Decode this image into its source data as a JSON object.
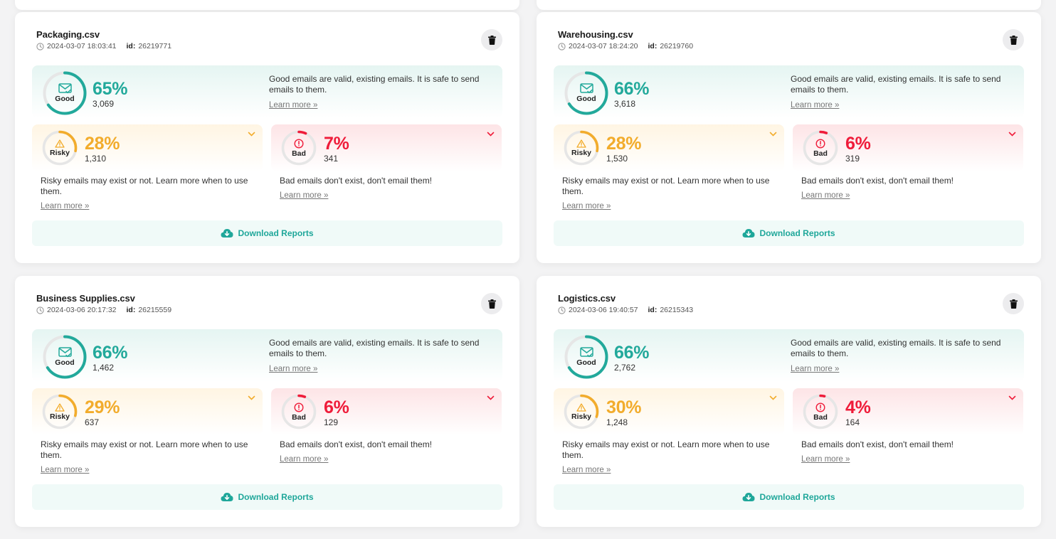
{
  "learn_more": "Learn more »",
  "download_label": "Download Reports",
  "id_label": "id:",
  "categories": {
    "good": {
      "label": "Good",
      "desc": "Good emails are valid, existing emails. It is safe to send emails to them.",
      "color": "#22a99b"
    },
    "risky": {
      "label": "Risky",
      "desc": "Risky emails may exist or not. Learn more when to use them.",
      "color": "#f2ac2c"
    },
    "bad": {
      "label": "Bad",
      "desc": "Bad emails don't exist, don't email them!",
      "color": "#ef1c3a"
    }
  },
  "cards": [
    {
      "file_name": "Packaging.csv",
      "date": "2024-03-07 18:03:41",
      "id": "26219771",
      "good": {
        "pct": "65%",
        "count": "3,069",
        "value": 0.65
      },
      "risky": {
        "pct": "28%",
        "count": "1,310",
        "value": 0.28
      },
      "bad": {
        "pct": "7%",
        "count": "341",
        "value": 0.07
      }
    },
    {
      "file_name": "Warehousing.csv",
      "date": "2024-03-07 18:24:20",
      "id": "26219760",
      "good": {
        "pct": "66%",
        "count": "3,618",
        "value": 0.66
      },
      "risky": {
        "pct": "28%",
        "count": "1,530",
        "value": 0.28
      },
      "bad": {
        "pct": "6%",
        "count": "319",
        "value": 0.06
      }
    },
    {
      "file_name": "Business Supplies.csv",
      "date": "2024-03-06 20:17:32",
      "id": "26215559",
      "good": {
        "pct": "66%",
        "count": "1,462",
        "value": 0.66
      },
      "risky": {
        "pct": "29%",
        "count": "637",
        "value": 0.29
      },
      "bad": {
        "pct": "6%",
        "count": "129",
        "value": 0.06
      }
    },
    {
      "file_name": "Logistics.csv",
      "date": "2024-03-06 19:40:57",
      "id": "26215343",
      "good": {
        "pct": "66%",
        "count": "2,762",
        "value": 0.66
      },
      "risky": {
        "pct": "30%",
        "count": "1,248",
        "value": 0.3
      },
      "bad": {
        "pct": "4%",
        "count": "164",
        "value": 0.04
      }
    }
  ]
}
